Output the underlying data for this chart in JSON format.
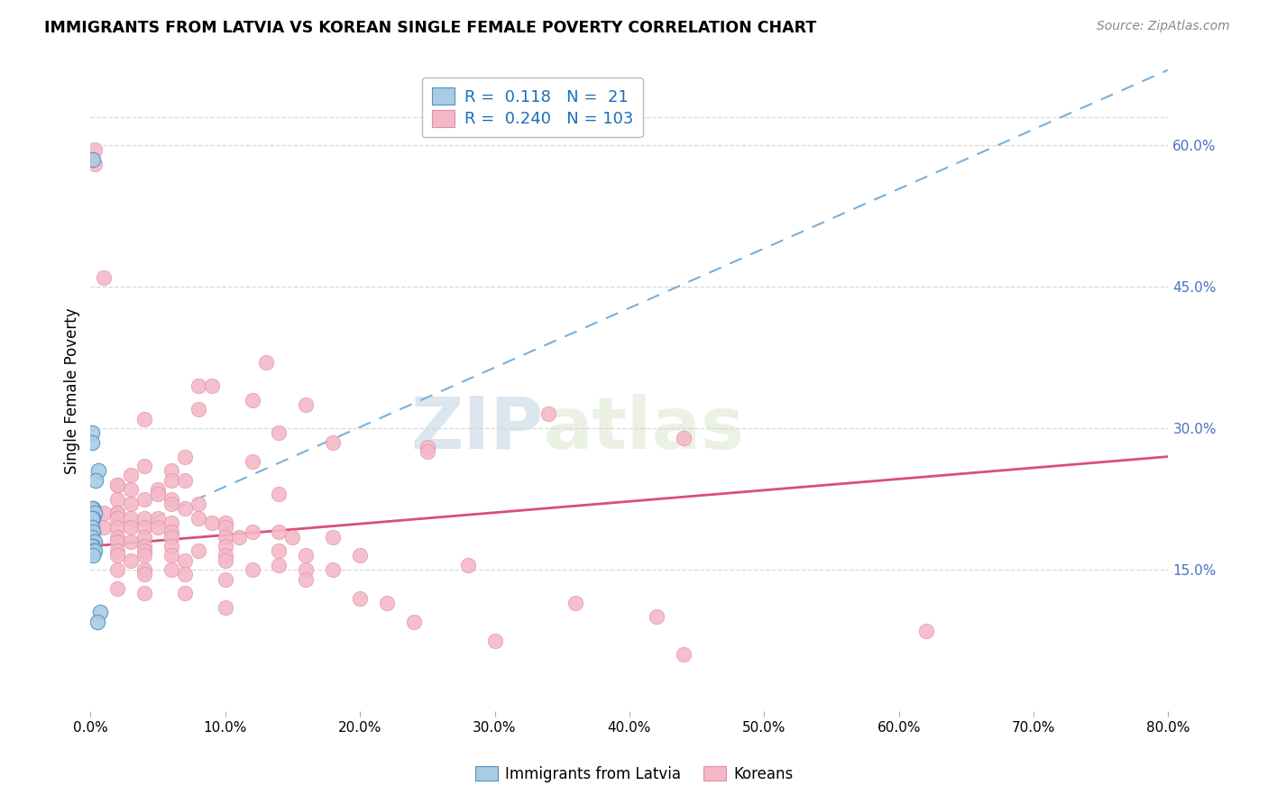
{
  "title": "IMMIGRANTS FROM LATVIA VS KOREAN SINGLE FEMALE POVERTY CORRELATION CHART",
  "source": "Source: ZipAtlas.com",
  "ylabel": "Single Female Poverty",
  "right_yticks": [
    "60.0%",
    "45.0%",
    "30.0%",
    "15.0%"
  ],
  "right_ytick_vals": [
    0.6,
    0.45,
    0.3,
    0.15
  ],
  "color_blue": "#a8cce4",
  "color_pink": "#f4b8c8",
  "color_trend_blue": "#4472c4",
  "color_trend_pink": "#d94f7a",
  "watermark_zip": "ZIP",
  "watermark_atlas": "atlas",
  "background_color": "#ffffff",
  "grid_color": "#d8d8d8",
  "xlim": [
    0.0,
    0.8
  ],
  "ylim": [
    0.0,
    0.68
  ],
  "latvia_points": [
    [
      0.002,
      0.585
    ],
    [
      0.001,
      0.295
    ],
    [
      0.001,
      0.285
    ],
    [
      0.006,
      0.255
    ],
    [
      0.004,
      0.245
    ],
    [
      0.002,
      0.215
    ],
    [
      0.001,
      0.215
    ],
    [
      0.003,
      0.21
    ],
    [
      0.002,
      0.205
    ],
    [
      0.001,
      0.205
    ],
    [
      0.001,
      0.195
    ],
    [
      0.002,
      0.19
    ],
    [
      0.001,
      0.185
    ],
    [
      0.003,
      0.18
    ],
    [
      0.002,
      0.175
    ],
    [
      0.001,
      0.175
    ],
    [
      0.002,
      0.17
    ],
    [
      0.003,
      0.17
    ],
    [
      0.002,
      0.165
    ],
    [
      0.007,
      0.105
    ],
    [
      0.005,
      0.095
    ]
  ],
  "korean_points": [
    [
      0.003,
      0.595
    ],
    [
      0.003,
      0.58
    ],
    [
      0.01,
      0.46
    ],
    [
      0.13,
      0.37
    ],
    [
      0.08,
      0.345
    ],
    [
      0.09,
      0.345
    ],
    [
      0.12,
      0.33
    ],
    [
      0.16,
      0.325
    ],
    [
      0.08,
      0.32
    ],
    [
      0.34,
      0.315
    ],
    [
      0.04,
      0.31
    ],
    [
      0.14,
      0.295
    ],
    [
      0.44,
      0.29
    ],
    [
      0.18,
      0.285
    ],
    [
      0.25,
      0.28
    ],
    [
      0.25,
      0.275
    ],
    [
      0.07,
      0.27
    ],
    [
      0.12,
      0.265
    ],
    [
      0.04,
      0.26
    ],
    [
      0.06,
      0.255
    ],
    [
      0.03,
      0.25
    ],
    [
      0.06,
      0.245
    ],
    [
      0.07,
      0.245
    ],
    [
      0.02,
      0.24
    ],
    [
      0.02,
      0.24
    ],
    [
      0.05,
      0.235
    ],
    [
      0.03,
      0.235
    ],
    [
      0.05,
      0.23
    ],
    [
      0.14,
      0.23
    ],
    [
      0.02,
      0.225
    ],
    [
      0.04,
      0.225
    ],
    [
      0.06,
      0.225
    ],
    [
      0.03,
      0.22
    ],
    [
      0.06,
      0.22
    ],
    [
      0.08,
      0.22
    ],
    [
      0.07,
      0.215
    ],
    [
      0.01,
      0.21
    ],
    [
      0.02,
      0.21
    ],
    [
      0.02,
      0.21
    ],
    [
      0.02,
      0.205
    ],
    [
      0.03,
      0.205
    ],
    [
      0.04,
      0.205
    ],
    [
      0.05,
      0.205
    ],
    [
      0.08,
      0.205
    ],
    [
      0.06,
      0.2
    ],
    [
      0.09,
      0.2
    ],
    [
      0.1,
      0.2
    ],
    [
      0.01,
      0.195
    ],
    [
      0.02,
      0.195
    ],
    [
      0.03,
      0.195
    ],
    [
      0.04,
      0.195
    ],
    [
      0.05,
      0.195
    ],
    [
      0.1,
      0.195
    ],
    [
      0.06,
      0.19
    ],
    [
      0.12,
      0.19
    ],
    [
      0.14,
      0.19
    ],
    [
      0.02,
      0.185
    ],
    [
      0.04,
      0.185
    ],
    [
      0.06,
      0.185
    ],
    [
      0.1,
      0.185
    ],
    [
      0.11,
      0.185
    ],
    [
      0.15,
      0.185
    ],
    [
      0.18,
      0.185
    ],
    [
      0.02,
      0.18
    ],
    [
      0.03,
      0.18
    ],
    [
      0.04,
      0.175
    ],
    [
      0.06,
      0.175
    ],
    [
      0.1,
      0.175
    ],
    [
      0.02,
      0.17
    ],
    [
      0.04,
      0.17
    ],
    [
      0.08,
      0.17
    ],
    [
      0.14,
      0.17
    ],
    [
      0.02,
      0.165
    ],
    [
      0.04,
      0.165
    ],
    [
      0.06,
      0.165
    ],
    [
      0.1,
      0.165
    ],
    [
      0.16,
      0.165
    ],
    [
      0.2,
      0.165
    ],
    [
      0.03,
      0.16
    ],
    [
      0.07,
      0.16
    ],
    [
      0.1,
      0.16
    ],
    [
      0.14,
      0.155
    ],
    [
      0.28,
      0.155
    ],
    [
      0.02,
      0.15
    ],
    [
      0.04,
      0.15
    ],
    [
      0.06,
      0.15
    ],
    [
      0.12,
      0.15
    ],
    [
      0.16,
      0.15
    ],
    [
      0.18,
      0.15
    ],
    [
      0.04,
      0.145
    ],
    [
      0.07,
      0.145
    ],
    [
      0.1,
      0.14
    ],
    [
      0.16,
      0.14
    ],
    [
      0.02,
      0.13
    ],
    [
      0.04,
      0.125
    ],
    [
      0.07,
      0.125
    ],
    [
      0.2,
      0.12
    ],
    [
      0.22,
      0.115
    ],
    [
      0.36,
      0.115
    ],
    [
      0.1,
      0.11
    ],
    [
      0.42,
      0.1
    ],
    [
      0.24,
      0.095
    ],
    [
      0.62,
      0.085
    ],
    [
      0.3,
      0.075
    ],
    [
      0.44,
      0.06
    ]
  ],
  "latvia_trend_x": [
    0.0,
    0.8
  ],
  "latvia_trend_y": [
    0.175,
    0.68
  ],
  "korean_trend_x": [
    0.0,
    0.8
  ],
  "korean_trend_y": [
    0.175,
    0.27
  ]
}
